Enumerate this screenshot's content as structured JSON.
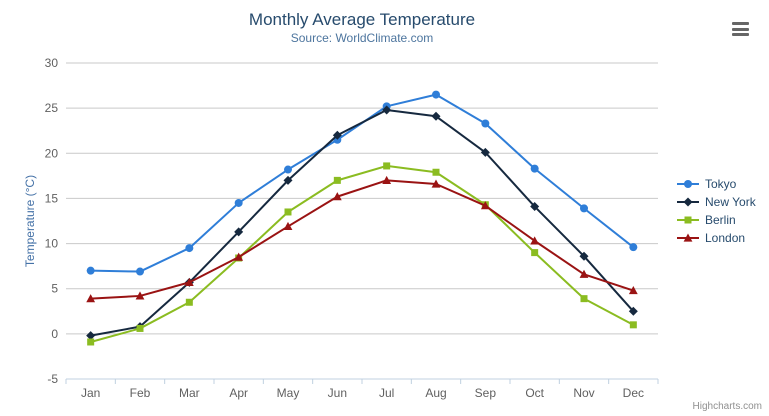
{
  "chart": {
    "title": "Monthly Average Temperature",
    "subtitle": "Source: WorldClimate.com",
    "credits": "Highcharts.com",
    "export_menu_icon": "hamburger"
  },
  "chart_data": {
    "type": "line",
    "title": "Monthly Average Temperature",
    "subtitle": "Source: WorldClimate.com",
    "xlabel": "",
    "ylabel": "Temperature (°C)",
    "categories": [
      "Jan",
      "Feb",
      "Mar",
      "Apr",
      "May",
      "Jun",
      "Jul",
      "Aug",
      "Sep",
      "Oct",
      "Nov",
      "Dec"
    ],
    "series": [
      {
        "name": "Tokyo",
        "color": "#2f7ed8",
        "marker": "circle",
        "values": [
          7.0,
          6.9,
          9.5,
          14.5,
          18.2,
          21.5,
          25.2,
          26.5,
          23.3,
          18.3,
          13.9,
          9.6
        ]
      },
      {
        "name": "New York",
        "color": "#16293f",
        "marker": "diamond",
        "values": [
          -0.2,
          0.8,
          5.7,
          11.3,
          17.0,
          22.0,
          24.8,
          24.1,
          20.1,
          14.1,
          8.6,
          2.5
        ]
      },
      {
        "name": "Berlin",
        "color": "#8bbc21",
        "marker": "square",
        "values": [
          -0.9,
          0.6,
          3.5,
          8.4,
          13.5,
          17.0,
          18.6,
          17.9,
          14.3,
          9.0,
          3.9,
          1.0
        ]
      },
      {
        "name": "London",
        "color": "#9a1313",
        "marker": "triangle",
        "values": [
          3.9,
          4.2,
          5.7,
          8.5,
          11.9,
          15.2,
          17.0,
          16.6,
          14.2,
          10.3,
          6.6,
          4.8
        ]
      }
    ],
    "ylim": [
      -5,
      30
    ],
    "tick_interval": 5,
    "grid": true,
    "grid_color": "#c9c9c9",
    "axis_line_color": "#c0d0e0",
    "legend_position": "right"
  }
}
